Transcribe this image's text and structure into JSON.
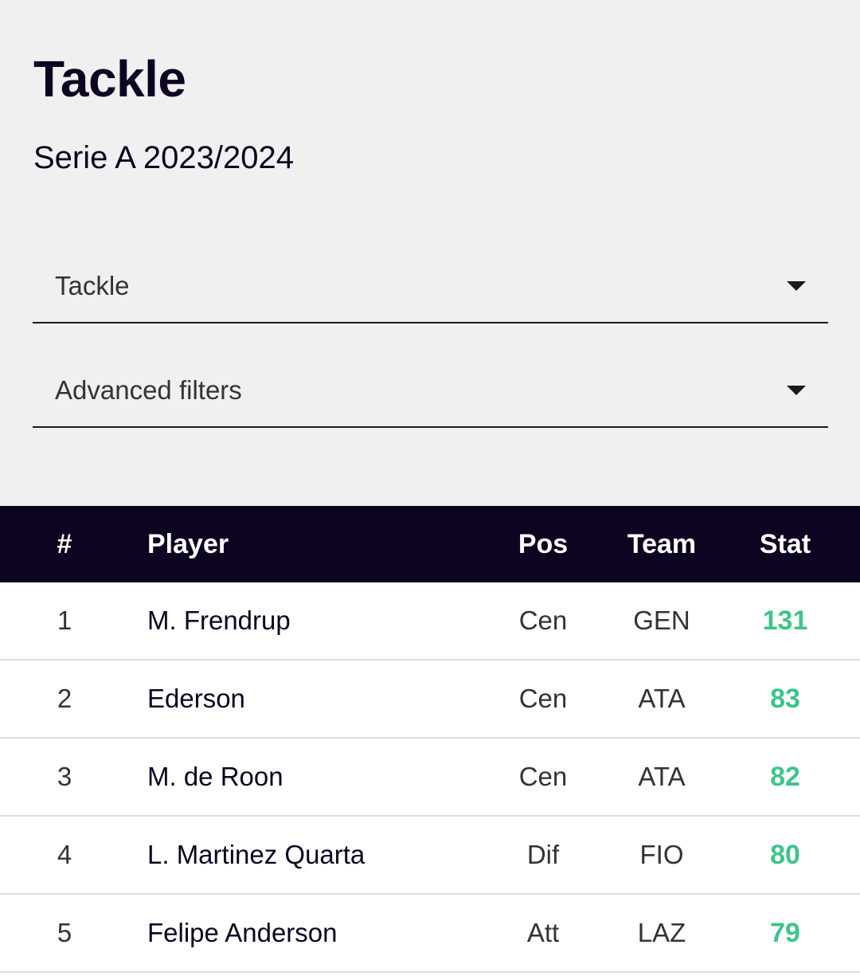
{
  "header": {
    "title": "Tackle",
    "subtitle": "Serie A 2023/2024"
  },
  "filters": {
    "stat_select": "Tackle",
    "advanced": "Advanced filters"
  },
  "table": {
    "columns": {
      "rank": "#",
      "player": "Player",
      "pos": "Pos",
      "team": "Team",
      "stat": "Stat"
    },
    "rows": [
      {
        "rank": "1",
        "player": "M. Frendrup",
        "pos": "Cen",
        "team": "GEN",
        "stat": "131"
      },
      {
        "rank": "2",
        "player": "Ederson",
        "pos": "Cen",
        "team": "ATA",
        "stat": "83"
      },
      {
        "rank": "3",
        "player": "M. de Roon",
        "pos": "Cen",
        "team": "ATA",
        "stat": "82"
      },
      {
        "rank": "4",
        "player": "L. Martinez Quarta",
        "pos": "Dif",
        "team": "FIO",
        "stat": "80"
      },
      {
        "rank": "5",
        "player": "Felipe Anderson",
        "pos": "Att",
        "team": "LAZ",
        "stat": "79"
      }
    ]
  },
  "colors": {
    "header_bg": "#0c0420",
    "stat_green": "#3fc48a",
    "panel_bg": "#f0f0f0"
  },
  "icons": {
    "dropdown": "caret-down-icon"
  }
}
